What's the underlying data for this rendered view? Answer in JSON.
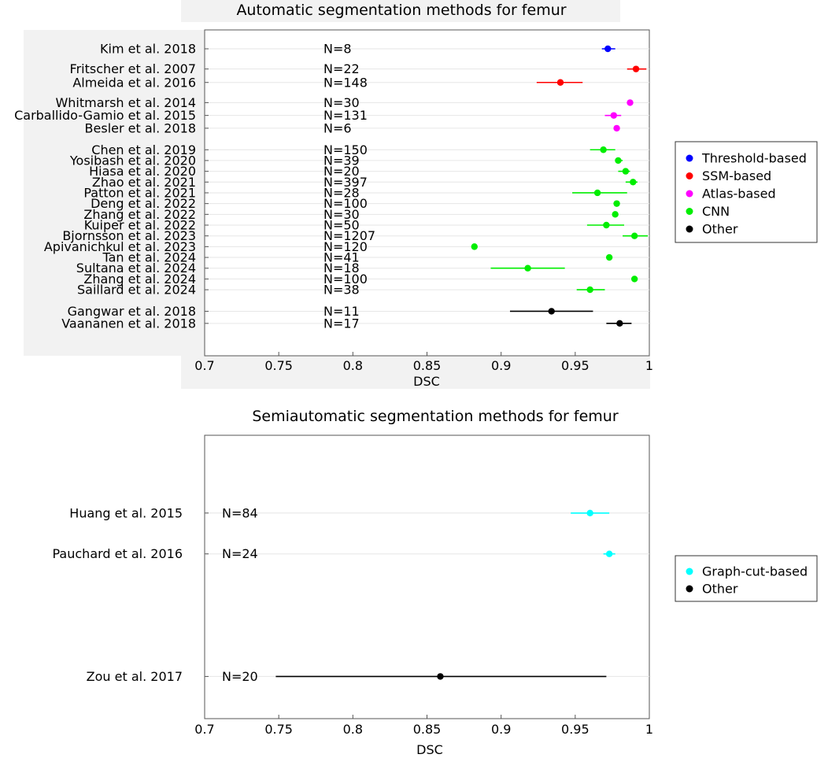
{
  "chart_data": [
    {
      "type": "forest",
      "title": "Automatic segmentation methods for femur",
      "xlabel": "DSC",
      "xlim": [
        0.7,
        1
      ],
      "xticks": [
        "0.7",
        "0.75",
        "0.8",
        "0.85",
        "0.9",
        "0.95",
        "1"
      ],
      "legend": [
        {
          "name": "Threshold-based",
          "color": "#0000ff"
        },
        {
          "name": "SSM-based",
          "color": "#ff0000"
        },
        {
          "name": "Atlas-based",
          "color": "#ff00ff"
        },
        {
          "name": "CNN",
          "color": "#00ee00"
        },
        {
          "name": "Other",
          "color": "#000000"
        }
      ],
      "studies": [
        {
          "label": "Kim et al. 2018",
          "n": "N=8",
          "mean": 0.972,
          "low": 0.968,
          "high": 0.977,
          "group": "Threshold-based",
          "row": 0
        },
        {
          "label": "Fritscher et al. 2007",
          "n": "N=22",
          "mean": 0.991,
          "low": 0.985,
          "high": 0.998,
          "group": "SSM-based",
          "row": 1.5
        },
        {
          "label": "Almeida et al. 2016",
          "n": "N=148",
          "mean": 0.94,
          "low": 0.924,
          "high": 0.955,
          "group": "SSM-based",
          "row": 2.5
        },
        {
          "label": "Whitmarsh et al. 2014",
          "n": "N=30",
          "mean": 0.987,
          "low": 0.987,
          "high": 0.987,
          "group": "Atlas-based",
          "row": 4.0
        },
        {
          "label": "Carballido-Gamio et al. 2015",
          "n": "N=131",
          "mean": 0.976,
          "low": 0.97,
          "high": 0.981,
          "group": "Atlas-based",
          "row": 4.95
        },
        {
          "label": "Besler et al. 2018",
          "n": "N=6",
          "mean": 0.978,
          "low": 0.978,
          "high": 0.978,
          "group": "Atlas-based",
          "row": 5.9
        },
        {
          "label": "Chen et al. 2019",
          "n": "N=150",
          "mean": 0.969,
          "low": 0.96,
          "high": 0.977,
          "group": "CNN",
          "row": 7.5
        },
        {
          "label": "Yosibash et al. 2020",
          "n": "N=39",
          "mean": 0.979,
          "low": 0.977,
          "high": 0.982,
          "group": "CNN",
          "row": 8.3
        },
        {
          "label": "Hiasa et al. 2020",
          "n": "N=20",
          "mean": 0.984,
          "low": 0.979,
          "high": 0.987,
          "group": "CNN",
          "row": 9.1
        },
        {
          "label": "Zhao et al. 2021",
          "n": "N=397",
          "mean": 0.989,
          "low": 0.984,
          "high": 0.992,
          "group": "CNN",
          "row": 9.9
        },
        {
          "label": "Patton et al. 2021",
          "n": "N=28",
          "mean": 0.965,
          "low": 0.948,
          "high": 0.985,
          "group": "CNN",
          "row": 10.7
        },
        {
          "label": "Deng et al. 2022",
          "n": "N=100",
          "mean": 0.978,
          "low": 0.978,
          "high": 0.978,
          "group": "CNN",
          "row": 11.5
        },
        {
          "label": "Zhang et al. 2022",
          "n": "N=30",
          "mean": 0.977,
          "low": 0.977,
          "high": 0.977,
          "group": "CNN",
          "row": 12.3
        },
        {
          "label": "Kuiper et al. 2022",
          "n": "N=50",
          "mean": 0.971,
          "low": 0.958,
          "high": 0.983,
          "group": "CNN",
          "row": 13.1
        },
        {
          "label": "Bjornsson et al. 2023",
          "n": "N=1207",
          "mean": 0.99,
          "low": 0.982,
          "high": 0.999,
          "group": "CNN",
          "row": 13.9
        },
        {
          "label": "Apivanichkul et al. 2023",
          "n": "N=120",
          "mean": 0.882,
          "low": 0.882,
          "high": 0.882,
          "group": "CNN",
          "row": 14.7
        },
        {
          "label": "Tan et al. 2024",
          "n": "N=41",
          "mean": 0.973,
          "low": 0.973,
          "high": 0.973,
          "group": "CNN",
          "row": 15.5
        },
        {
          "label": "Sultana et al. 2024",
          "n": "N=18",
          "mean": 0.918,
          "low": 0.893,
          "high": 0.943,
          "group": "CNN",
          "row": 16.3
        },
        {
          "label": "Zhang et al. 2024",
          "n": "N=100",
          "mean": 0.99,
          "low": 0.99,
          "high": 0.99,
          "group": "CNN",
          "row": 17.1
        },
        {
          "label": "Saillard et al. 2024",
          "n": "N=38",
          "mean": 0.96,
          "low": 0.951,
          "high": 0.97,
          "group": "CNN",
          "row": 17.9
        },
        {
          "label": "Gangwar et al. 2018",
          "n": "N=11",
          "mean": 0.934,
          "low": 0.906,
          "high": 0.962,
          "group": "Other",
          "row": 19.5
        },
        {
          "label": "Vaananen et al. 2018",
          "n": "N=17",
          "mean": 0.98,
          "low": 0.971,
          "high": 0.988,
          "group": "Other",
          "row": 20.4
        }
      ]
    },
    {
      "type": "forest",
      "title": "Semiautomatic segmentation methods for femur",
      "xlabel": "DSC",
      "xlim": [
        0.7,
        1
      ],
      "xticks": [
        "0.7",
        "0.75",
        "0.8",
        "0.85",
        "0.9",
        "0.95",
        "1"
      ],
      "legend": [
        {
          "name": "Graph-cut-based",
          "color": "#00ffff"
        },
        {
          "name": "Other",
          "color": "#000000"
        }
      ],
      "studies": [
        {
          "label": "Huang et al. 2015",
          "n": "N=84",
          "mean": 0.96,
          "low": 0.947,
          "high": 0.973,
          "group": "Graph-cut-based",
          "row": 2
        },
        {
          "label": "Pauchard et al. 2016",
          "n": "N=24",
          "mean": 0.973,
          "low": 0.969,
          "high": 0.977,
          "group": "Graph-cut-based",
          "row": 3
        },
        {
          "label": "Zou et al. 2017",
          "n": "N=20",
          "mean": 0.859,
          "low": 0.748,
          "high": 0.971,
          "group": "Other",
          "row": 6
        }
      ]
    }
  ]
}
